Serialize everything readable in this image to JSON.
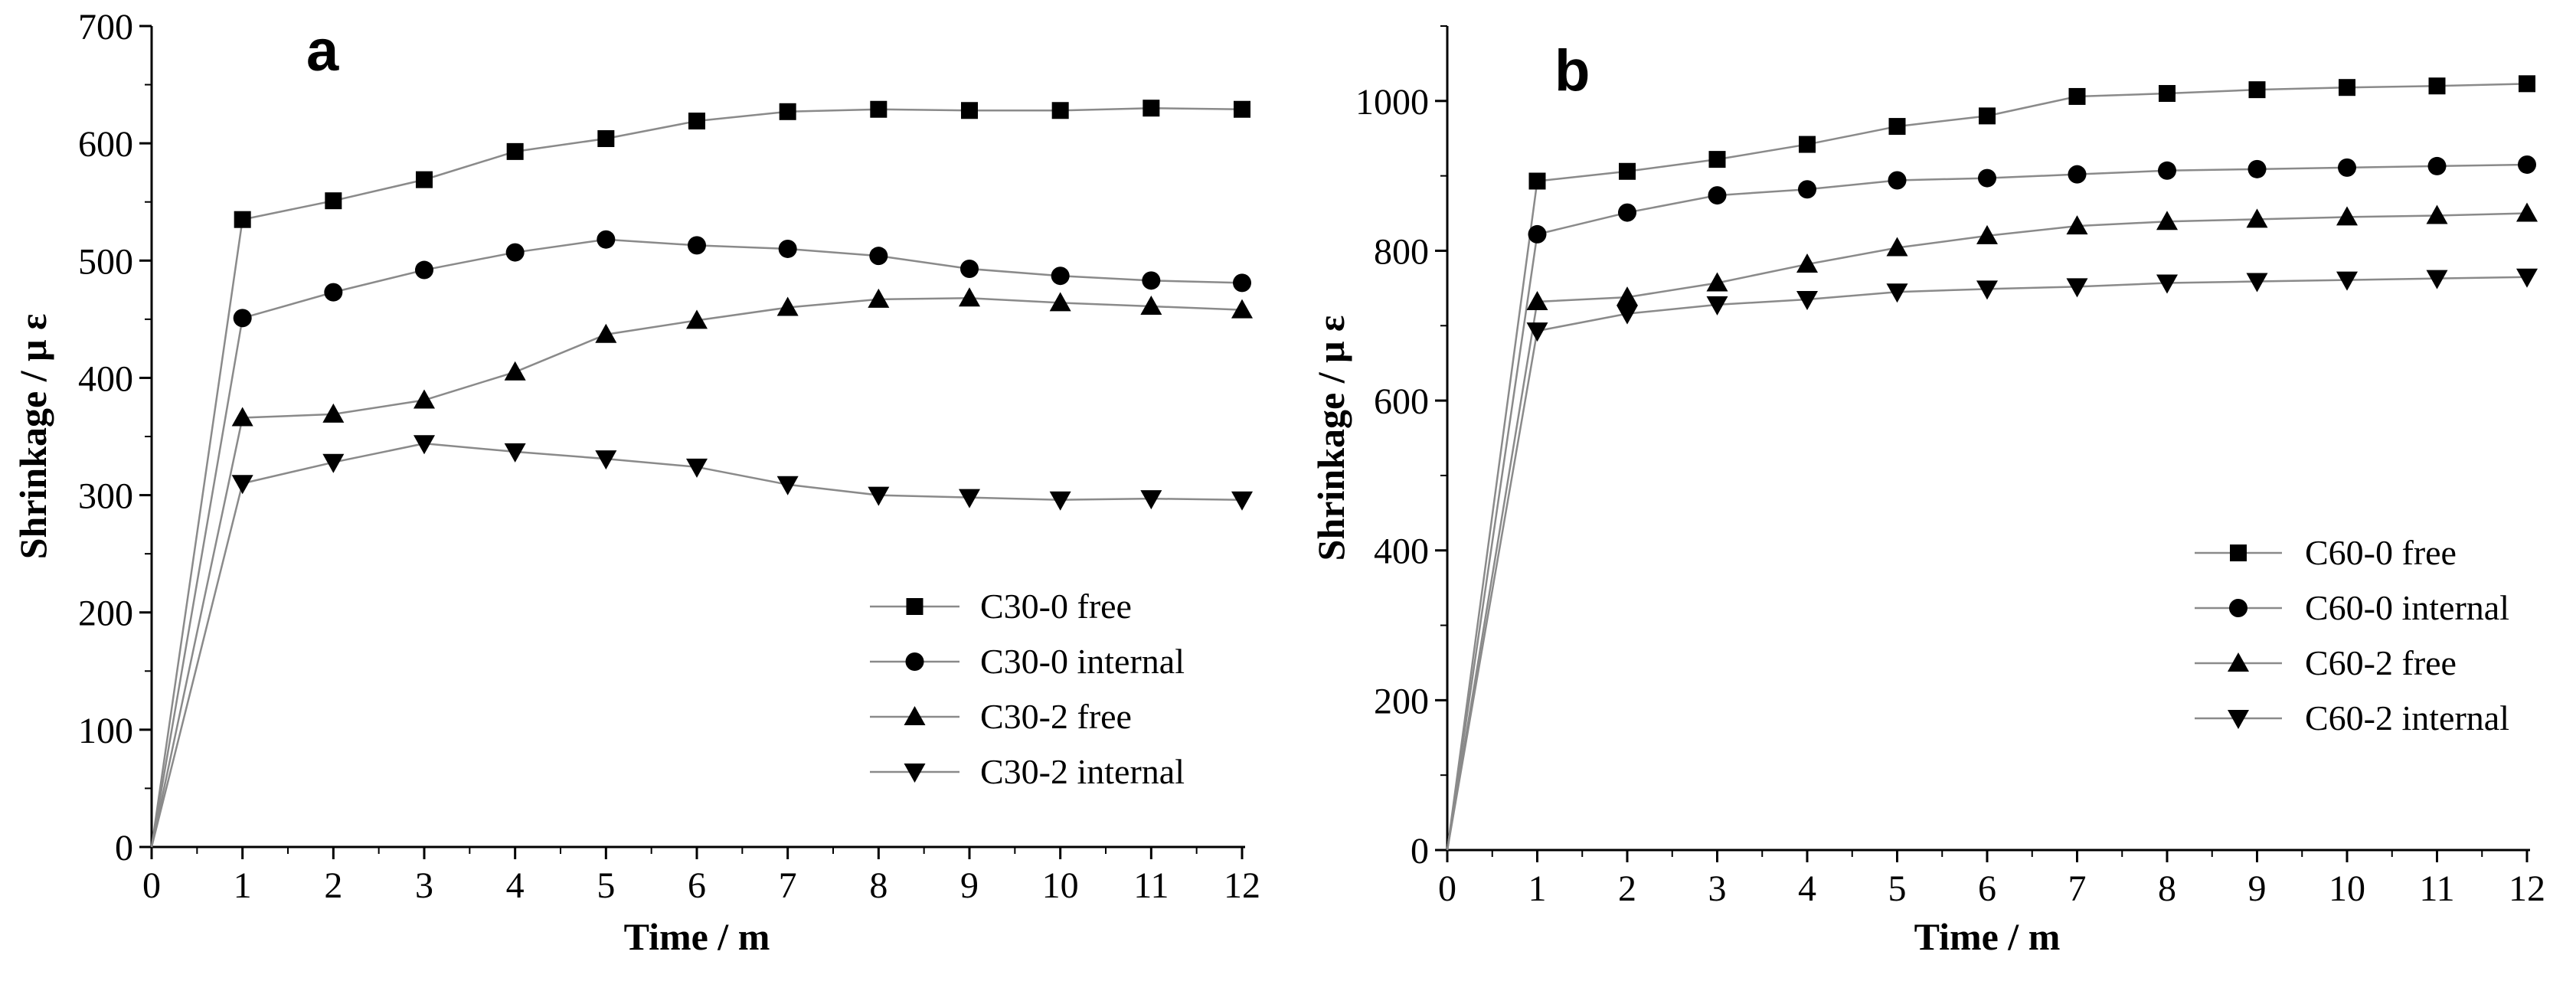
{
  "chart_data": [
    {
      "type": "line",
      "panel_label": "a",
      "xlabel": "Time / m",
      "ylabel": "Shrinkage / μ ε",
      "xlim": [
        0,
        12
      ],
      "ylim": [
        0,
        700
      ],
      "x_ticks": [
        0,
        1,
        2,
        3,
        4,
        5,
        6,
        7,
        8,
        9,
        10,
        11,
        12
      ],
      "y_ticks": [
        0,
        100,
        200,
        300,
        400,
        500,
        600,
        700
      ],
      "legend_position": "lower-right",
      "x": [
        0,
        1,
        2,
        3,
        4,
        5,
        6,
        7,
        8,
        9,
        10,
        11,
        12
      ],
      "series": [
        {
          "name": "C30-0 free",
          "marker": "square",
          "values": [
            0,
            535,
            551,
            569,
            593,
            604,
            619,
            627,
            629,
            628,
            628,
            630,
            629
          ]
        },
        {
          "name": "C30-0 internal",
          "marker": "circle",
          "values": [
            0,
            451,
            473,
            492,
            507,
            518,
            513,
            510,
            504,
            493,
            487,
            483,
            481
          ]
        },
        {
          "name": "C30-2 free",
          "marker": "triangle-up",
          "values": [
            0,
            366,
            369,
            381,
            405,
            437,
            449,
            460,
            467,
            468,
            464,
            461,
            458
          ]
        },
        {
          "name": "C30-2 internal",
          "marker": "triangle-down",
          "values": [
            0,
            310,
            328,
            344,
            337,
            331,
            324,
            309,
            300,
            298,
            296,
            297,
            296
          ]
        }
      ]
    },
    {
      "type": "line",
      "panel_label": "b",
      "xlabel": "Time / m",
      "ylabel": "Shrinkage / μ ε",
      "xlim": [
        0,
        12
      ],
      "ylim": [
        0,
        1100
      ],
      "x_ticks": [
        0,
        1,
        2,
        3,
        4,
        5,
        6,
        7,
        8,
        9,
        10,
        11,
        12
      ],
      "y_ticks": [
        0,
        200,
        400,
        600,
        800,
        1000
      ],
      "legend_position": "lower-right",
      "x": [
        0,
        1,
        2,
        3,
        4,
        5,
        6,
        7,
        8,
        9,
        10,
        11,
        12
      ],
      "series": [
        {
          "name": "C60-0 free",
          "marker": "square",
          "values": [
            0,
            893,
            906,
            922,
            942,
            966,
            980,
            1006,
            1010,
            1015,
            1018,
            1020,
            1023
          ]
        },
        {
          "name": "C60-0 internal",
          "marker": "circle",
          "values": [
            0,
            822,
            851,
            874,
            882,
            894,
            897,
            902,
            907,
            909,
            911,
            913,
            915
          ]
        },
        {
          "name": "C60-2 free",
          "marker": "triangle-up",
          "values": [
            0,
            732,
            738,
            757,
            782,
            804,
            820,
            833,
            839,
            842,
            845,
            847,
            850
          ]
        },
        {
          "name": "C60-2 internal",
          "marker": "triangle-down",
          "values": [
            0,
            693,
            716,
            728,
            735,
            745,
            749,
            752,
            757,
            759,
            761,
            763,
            765
          ]
        }
      ]
    }
  ]
}
